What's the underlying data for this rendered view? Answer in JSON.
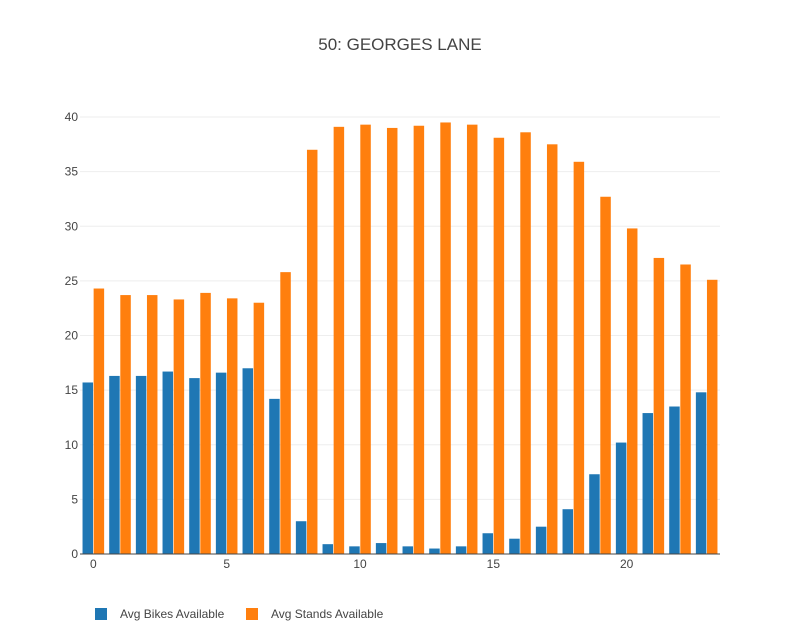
{
  "chart_data": {
    "type": "bar",
    "title": "50: GEORGES LANE",
    "xlabel": "",
    "ylabel": "",
    "x": [
      0,
      1,
      2,
      3,
      4,
      5,
      6,
      7,
      8,
      9,
      10,
      11,
      12,
      13,
      14,
      15,
      16,
      17,
      18,
      19,
      20,
      21,
      22,
      23
    ],
    "x_ticks": [
      0,
      5,
      10,
      15,
      20
    ],
    "y_ticks": [
      0,
      5,
      10,
      15,
      20,
      25,
      30,
      35,
      40
    ],
    "ylim": [
      0,
      40
    ],
    "grid": true,
    "legend_position": "bottom-left",
    "series": [
      {
        "name": "Avg Bikes Available",
        "color": "#1f77b4",
        "values": [
          15.7,
          16.3,
          16.3,
          16.7,
          16.1,
          16.6,
          17.0,
          14.2,
          3.0,
          0.9,
          0.7,
          1.0,
          0.7,
          0.5,
          0.7,
          1.9,
          1.4,
          2.5,
          4.1,
          7.3,
          10.2,
          12.9,
          13.5,
          14.8
        ]
      },
      {
        "name": "Avg Stands Available",
        "color": "#ff7f0e",
        "values": [
          24.3,
          23.7,
          23.7,
          23.3,
          23.9,
          23.4,
          23.0,
          25.8,
          37.0,
          39.1,
          39.3,
          39.0,
          39.2,
          39.5,
          39.3,
          38.1,
          38.6,
          37.5,
          35.9,
          32.7,
          29.8,
          27.1,
          26.5,
          25.1
        ]
      }
    ]
  }
}
